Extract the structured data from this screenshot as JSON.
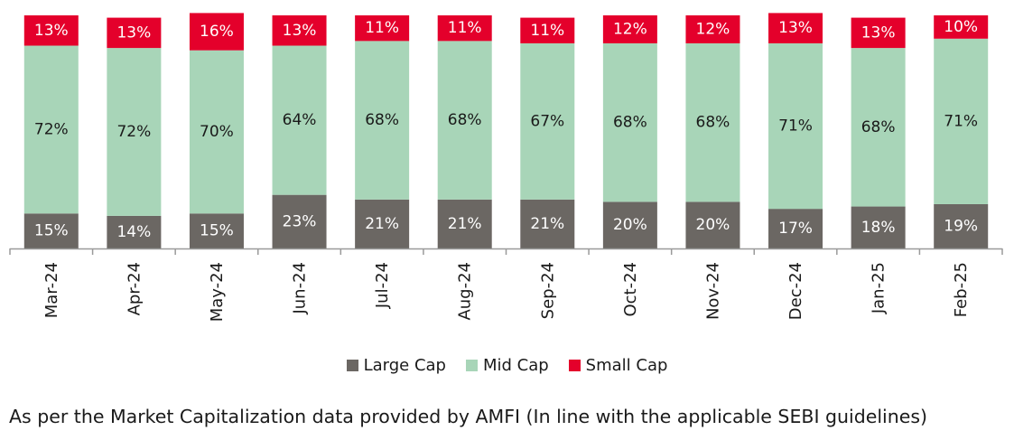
{
  "chart_data": {
    "type": "bar",
    "stacked": true,
    "percent": true,
    "categories": [
      "Mar-24",
      "Apr-24",
      "May-24",
      "Jun-24",
      "Jul-24",
      "Aug-24",
      "Sep-24",
      "Oct-24",
      "Nov-24",
      "Dec-24",
      "Jan-25",
      "Feb-25"
    ],
    "series": [
      {
        "name": "Large Cap",
        "color": "#6b6763",
        "values": [
          15,
          14,
          15,
          23,
          21,
          21,
          21,
          20,
          20,
          17,
          18,
          19
        ]
      },
      {
        "name": "Mid Cap",
        "color": "#a8d5b8",
        "values": [
          72,
          72,
          70,
          64,
          68,
          68,
          67,
          68,
          68,
          71,
          68,
          71
        ]
      },
      {
        "name": "Small Cap",
        "color": "#e4002b",
        "values": [
          13,
          13,
          16,
          13,
          11,
          11,
          11,
          12,
          12,
          13,
          13,
          10
        ]
      }
    ],
    "data_label_suffix": "%",
    "legend_position": "bottom",
    "grid": false
  },
  "footnote": "As per the Market Capitalization data provided by AMFI (In line with the applicable SEBI guidelines)"
}
